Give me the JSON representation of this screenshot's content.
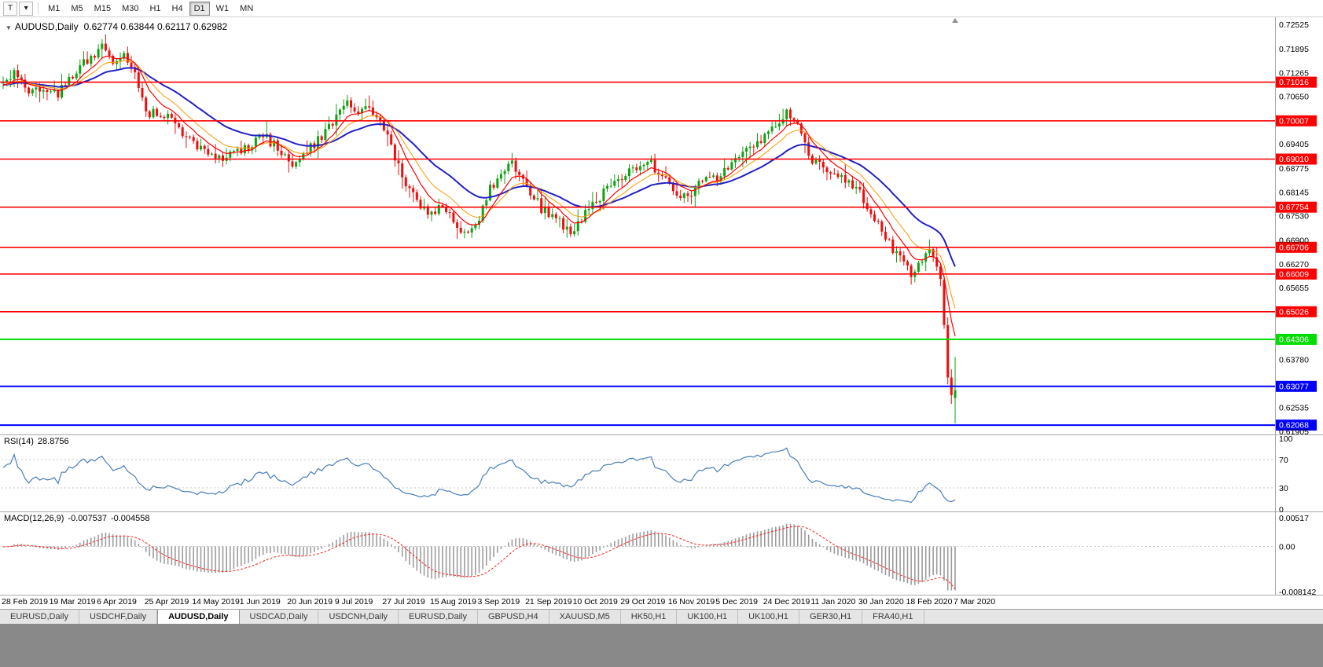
{
  "toolbar": {
    "icon_buttons": [
      {
        "name": "pointer-tool-button",
        "glyph": "T"
      },
      {
        "name": "chart-style-button",
        "glyph": "▾"
      }
    ],
    "timeframes": [
      "M1",
      "M5",
      "M15",
      "M30",
      "H1",
      "H4",
      "D1",
      "W1",
      "MN"
    ],
    "active_timeframe": "D1"
  },
  "chart": {
    "collapse_icon": "▼",
    "title": "AUDUSD,Daily",
    "ohlc_text": "0.62774 0.63844 0.62117 0.62982",
    "price_ticks": [
      "0.72525",
      "0.71895",
      "0.71265",
      "0.70650",
      "0.69405",
      "0.68775",
      "0.68145",
      "0.67530",
      "0.66900",
      "0.66270",
      "0.65655",
      "0.63780",
      "0.62535",
      "0.61905"
    ],
    "horizontal_lines": [
      {
        "label": "0.71016",
        "value": 0.71016,
        "color": "#FF0000"
      },
      {
        "label": "0.70007",
        "value": 0.70007,
        "color": "#FF0000"
      },
      {
        "label": "0.69010",
        "value": 0.6901,
        "color": "#FF0000"
      },
      {
        "label": "0.67754",
        "value": 0.67754,
        "color": "#FF0000"
      },
      {
        "label": "0.66706",
        "value": 0.66706,
        "color": "#FF0000"
      },
      {
        "label": "0.66009",
        "value": 0.66009,
        "color": "#FF0000"
      },
      {
        "label": "0.65026",
        "value": 0.65026,
        "color": "#FF0000"
      },
      {
        "label": "0.64306",
        "value": 0.64306,
        "color": "#00DD00"
      },
      {
        "label": "0.63077",
        "value": 0.63077,
        "color": "#0000FF"
      },
      {
        "label": "0.62068",
        "value": 0.62068,
        "color": "#0000FF"
      }
    ],
    "dates": [
      "28 Feb 2019",
      "19 Mar 2019",
      "6 Apr 2019",
      "25 Apr 2019",
      "14 May 2019",
      "1 Jun 2019",
      "20 Jun 2019",
      "9 Jul 2019",
      "27 Jul 2019",
      "15 Aug 2019",
      "3 Sep 2019",
      "21 Sep 2019",
      "10 Oct 2019",
      "29 Oct 2019",
      "16 Nov 2019",
      "5 Dec 2019",
      "24 Dec 2019",
      "11 Jan 2020",
      "30 Jan 2020",
      "18 Feb 2020",
      "7 Mar 2020"
    ]
  },
  "rsi": {
    "name": "RSI(14)",
    "value_text": "28.8756",
    "axis": [
      {
        "label": "100",
        "value": 100
      },
      {
        "label": "70",
        "value": 70
      },
      {
        "label": "30",
        "value": 30
      },
      {
        "label": "0",
        "value": 0
      }
    ],
    "levels": [
      70,
      30
    ]
  },
  "macd": {
    "name": "MACD(12,26,9)",
    "main_text": "-0.007537",
    "signal_text": "-0.004558",
    "axis": [
      {
        "label": "0.00517",
        "value": 0.00517
      },
      {
        "label": "0.00",
        "value": 0
      },
      {
        "label": "-0.008142",
        "value": -0.008142
      }
    ]
  },
  "tabs": {
    "active_index": 2,
    "items": [
      "EURUSD,Daily",
      "USDCHF,Daily",
      "AUDUSD,Daily",
      "USDCAD,Daily",
      "USDCNH,Daily",
      "EURUSD,Daily",
      "GBPUSD,H4",
      "XAUUSD,M5",
      "HK50,H1",
      "UK100,H1",
      "UK100,H1",
      "GER30,H1",
      "FRA40,H1"
    ]
  },
  "colors": {
    "candle_up": "#0FA312",
    "candle_down": "#EF0D0D",
    "ma_fast": "#FF0000",
    "ma_mid": "#FF9900",
    "ma_slow": "#2121C4",
    "rsi_line": "#4A7EBB",
    "macd_hist": "#9C9C9C",
    "macd_signal": "#FF2020",
    "level_dotted": "#C6C6C6",
    "divider": "#A8A8A8",
    "badge_text": "#FFFFFF",
    "axis_text": "#000000"
  },
  "chart_data": {
    "type": "candlestick",
    "symbol": "AUDUSD",
    "timeframe": "Daily",
    "current_bar": {
      "open": 0.62774,
      "high": 0.63844,
      "low": 0.62117,
      "close": 0.62982
    },
    "price_axis_range": {
      "top": 0.7271,
      "bottom": 0.61823
    },
    "bars_count": 261,
    "anchors": [
      [
        0,
        0.709
      ],
      [
        3,
        0.7128
      ],
      [
        7,
        0.7068
      ],
      [
        11,
        0.7092
      ],
      [
        15,
        0.7072
      ],
      [
        20,
        0.7132
      ],
      [
        24,
        0.7168
      ],
      [
        27,
        0.719
      ],
      [
        30,
        0.7152
      ],
      [
        33,
        0.717
      ],
      [
        36,
        0.7122
      ],
      [
        39,
        0.7018
      ],
      [
        43,
        0.7024
      ],
      [
        47,
        0.699
      ],
      [
        52,
        0.6942
      ],
      [
        56,
        0.6908
      ],
      [
        60,
        0.6896
      ],
      [
        63,
        0.6916
      ],
      [
        67,
        0.6936
      ],
      [
        71,
        0.6962
      ],
      [
        75,
        0.693
      ],
      [
        79,
        0.6872
      ],
      [
        83,
        0.6922
      ],
      [
        87,
        0.6962
      ],
      [
        91,
        0.7006
      ],
      [
        94,
        0.7042
      ],
      [
        97,
        0.7022
      ],
      [
        100,
        0.7038
      ],
      [
        104,
        0.6978
      ],
      [
        107,
        0.6902
      ],
      [
        110,
        0.6832
      ],
      [
        113,
        0.6788
      ],
      [
        117,
        0.6756
      ],
      [
        120,
        0.6782
      ],
      [
        123,
        0.6742
      ],
      [
        126,
        0.6712
      ],
      [
        129,
        0.6726
      ],
      [
        133,
        0.6822
      ],
      [
        136,
        0.6872
      ],
      [
        139,
        0.6892
      ],
      [
        143,
        0.6832
      ],
      [
        147,
        0.6772
      ],
      [
        151,
        0.6742
      ],
      [
        155,
        0.6712
      ],
      [
        158,
        0.6746
      ],
      [
        162,
        0.6792
      ],
      [
        166,
        0.6832
      ],
      [
        169,
        0.6856
      ],
      [
        173,
        0.6882
      ],
      [
        176,
        0.6906
      ],
      [
        179,
        0.6862
      ],
      [
        182,
        0.6832
      ],
      [
        186,
        0.6802
      ],
      [
        190,
        0.6832
      ],
      [
        195,
        0.6856
      ],
      [
        199,
        0.6892
      ],
      [
        203,
        0.6932
      ],
      [
        208,
        0.6962
      ],
      [
        212,
        0.7002
      ],
      [
        214,
        0.7022
      ],
      [
        217,
        0.6982
      ],
      [
        221,
        0.6902
      ],
      [
        225,
        0.6872
      ],
      [
        229,
        0.6852
      ],
      [
        234,
        0.6812
      ],
      [
        238,
        0.6742
      ],
      [
        242,
        0.6682
      ],
      [
        245,
        0.6642
      ],
      [
        248,
        0.6602
      ],
      [
        251,
        0.6642
      ],
      [
        253,
        0.6672
      ],
      [
        255,
        0.6632
      ],
      [
        256,
        0.6585
      ]
    ],
    "final_bars": [
      {
        "i": 257,
        "o": 0.6585,
        "h": 0.6597,
        "l": 0.6458,
        "c": 0.6468
      },
      {
        "i": 258,
        "o": 0.6468,
        "h": 0.6488,
        "l": 0.6313,
        "c": 0.6331
      },
      {
        "i": 259,
        "o": 0.6331,
        "h": 0.6352,
        "l": 0.6262,
        "c": 0.6285
      },
      {
        "i": 260,
        "o": 0.62774,
        "h": 0.63844,
        "l": 0.62117,
        "c": 0.62982
      }
    ],
    "indicators": {
      "moving_averages": [
        {
          "name": "fast",
          "period": 8,
          "color": "#FF0000"
        },
        {
          "name": "mid",
          "period": 14,
          "color": "#FF9900"
        },
        {
          "name": "slow",
          "period": 30,
          "color": "#2121C4"
        }
      ],
      "rsi": {
        "period": 14,
        "current": 28.8756,
        "scale": [
          0,
          100
        ],
        "levels": [
          70,
          30
        ]
      },
      "macd": {
        "fast": 12,
        "slow": 26,
        "signal": 9,
        "current_main": -0.007537,
        "current_signal": -0.004558,
        "scale": [
          -0.008142,
          0.00517
        ]
      }
    }
  }
}
